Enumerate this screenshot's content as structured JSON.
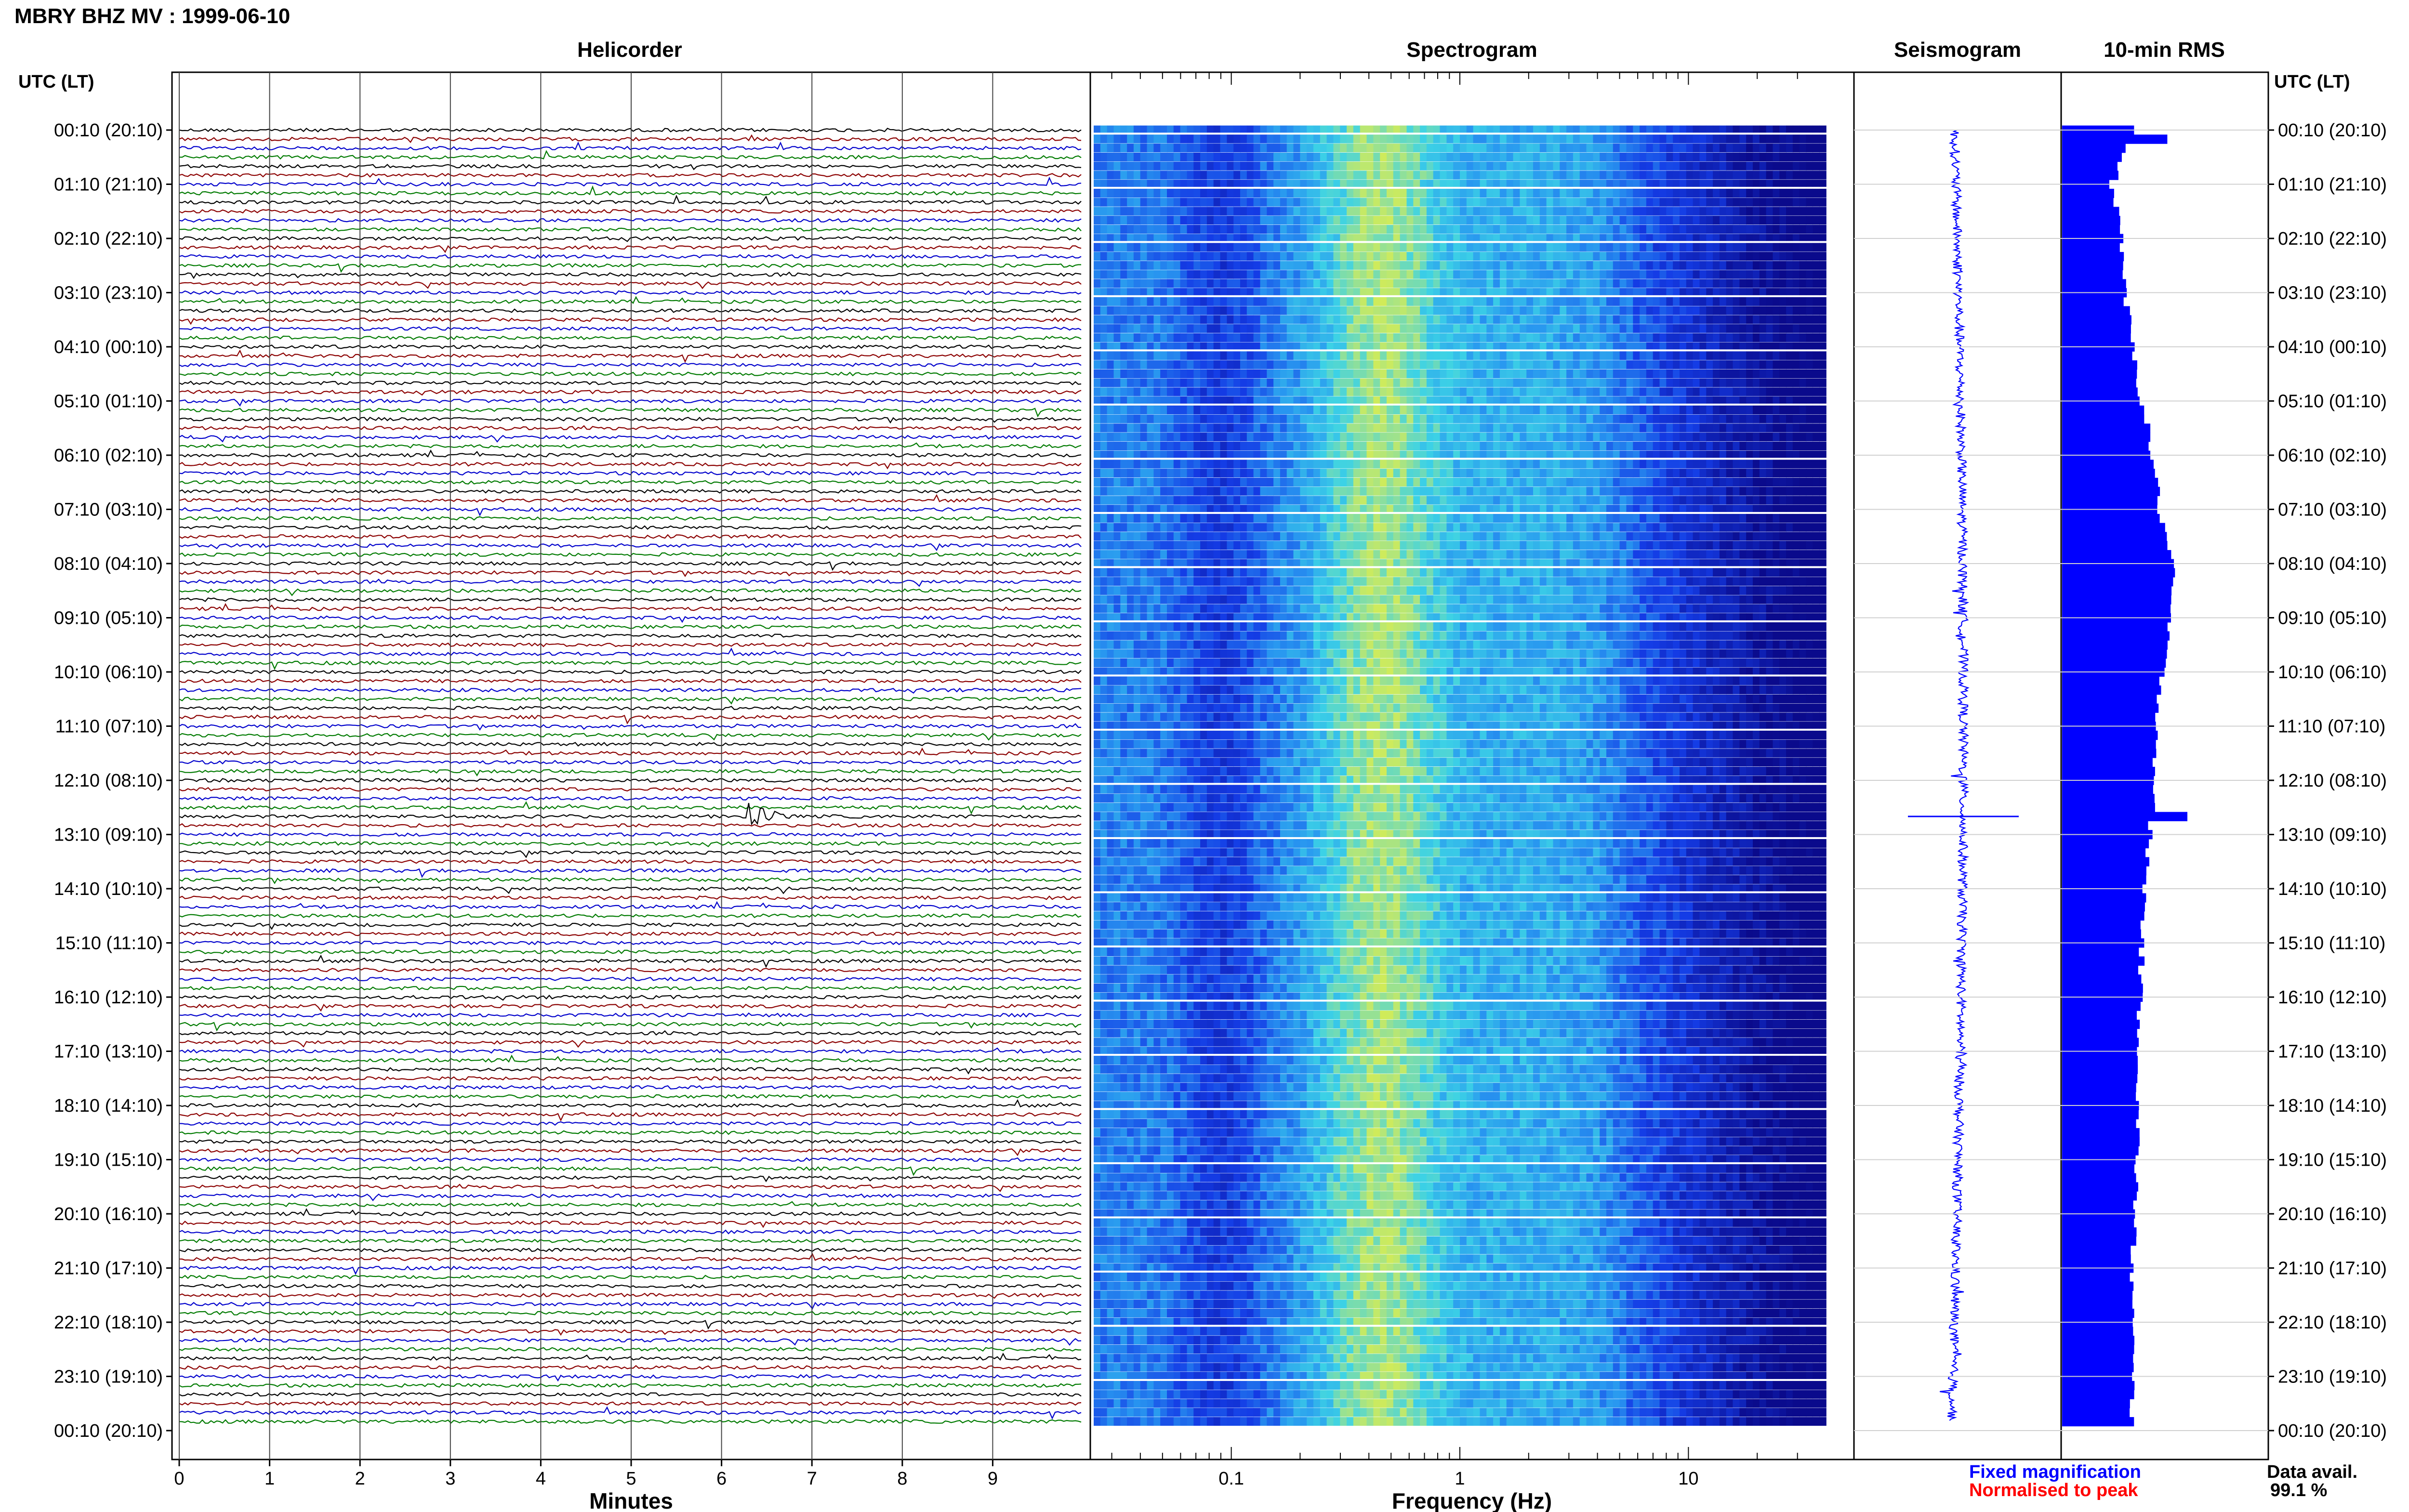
{
  "header": {
    "title": "MBRY BHZ MV : 1999-06-10"
  },
  "panels": {
    "helicorder_title": "Helicorder",
    "spectrogram_title": "Spectrogram",
    "seismogram_title": "Seismogram",
    "rms_title": "10-min RMS"
  },
  "time_axis": {
    "left_label": "UTC (LT)",
    "right_label": "UTC (LT)",
    "ticks": [
      "00:10 (20:10)",
      "01:10 (21:10)",
      "02:10 (22:10)",
      "03:10 (23:10)",
      "04:10 (00:10)",
      "05:10 (01:10)",
      "06:10 (02:10)",
      "07:10 (03:10)",
      "08:10 (04:10)",
      "09:10 (05:10)",
      "10:10 (06:10)",
      "11:10 (07:10)",
      "12:10 (08:10)",
      "13:10 (09:10)",
      "14:10 (10:10)",
      "15:10 (11:10)",
      "16:10 (12:10)",
      "17:10 (13:10)",
      "18:10 (14:10)",
      "19:10 (15:10)",
      "20:10 (16:10)",
      "21:10 (17:10)",
      "22:10 (18:10)",
      "23:10 (19:10)",
      "00:10 (20:10)"
    ]
  },
  "helicorder": {
    "xlabel": "Minutes",
    "xticks": [
      "0",
      "1",
      "2",
      "3",
      "4",
      "5",
      "6",
      "7",
      "8",
      "9"
    ],
    "trace_colors": [
      "#000000",
      "#8b0000",
      "#0000cc",
      "#007a00"
    ]
  },
  "spectrogram": {
    "xlabel": "Frequency (Hz)",
    "xticks": [
      "0.1",
      "1",
      "10"
    ],
    "scale": "log"
  },
  "legend": {
    "fixed": "Fixed magnification",
    "fixed_color": "#0000ff",
    "normalised": "Normalised to peak",
    "normalised_color": "#ff0000",
    "availability_label": "Data avail.",
    "availability_value": "99.1 %"
  },
  "chart_data": [
    {
      "type": "line",
      "title": "Helicorder",
      "xlabel": "Minutes",
      "x_range": [
        0,
        10
      ],
      "rows": 144,
      "row_interval_minutes": 10,
      "events": [
        {
          "time_utc": "12:50",
          "minute": 6.5,
          "description": "large event"
        }
      ]
    },
    {
      "type": "heatmap",
      "title": "Spectrogram",
      "xlabel": "Frequency (Hz)",
      "x_scale": "log",
      "x_range": [
        0.025,
        40
      ],
      "peak_band_hz": [
        0.2,
        0.8
      ]
    },
    {
      "type": "line",
      "title": "Seismogram",
      "spike_time_utc": "12:50"
    },
    {
      "type": "bar",
      "title": "10-min RMS",
      "orientation": "horizontal",
      "units": "relative",
      "categories": [
        "00:10",
        "01:10",
        "02:10",
        "03:10",
        "04:10",
        "05:10",
        "06:10",
        "07:10",
        "08:10",
        "09:10",
        "10:10",
        "11:10",
        "12:10",
        "13:10",
        "14:10",
        "15:10",
        "16:10",
        "17:10",
        "18:10",
        "19:10",
        "20:10",
        "21:10",
        "22:10",
        "23:10"
      ],
      "values": [
        0.55,
        0.4,
        0.48,
        0.5,
        0.56,
        0.64,
        0.72,
        0.78,
        0.88,
        0.86,
        0.8,
        0.76,
        0.74,
        0.7,
        0.66,
        0.64,
        0.62,
        0.62,
        0.6,
        0.6,
        0.58,
        0.56,
        0.56,
        0.56
      ],
      "peaks": [
        {
          "time_utc": "00:20",
          "value": 0.84
        },
        {
          "time_utc": "12:50",
          "value": 1.0
        }
      ],
      "xlim": [
        0,
        1
      ]
    }
  ]
}
